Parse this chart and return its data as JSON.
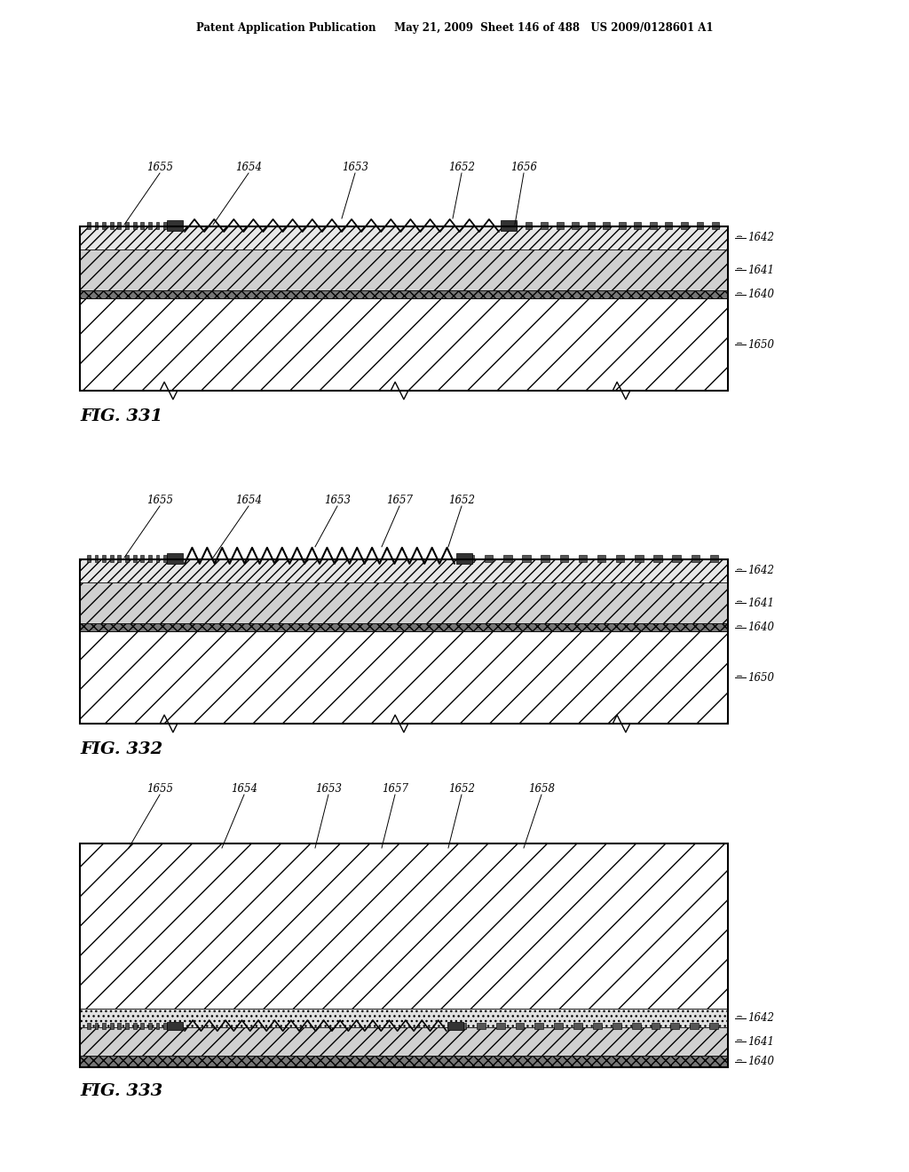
{
  "header": "Patent Application Publication     May 21, 2009  Sheet 146 of 488   US 2009/0128601 A1",
  "bg": "#ffffff",
  "fig331_title": "FIG. 331",
  "fig332_title": "FIG. 332",
  "fig333_title": "FIG. 333"
}
